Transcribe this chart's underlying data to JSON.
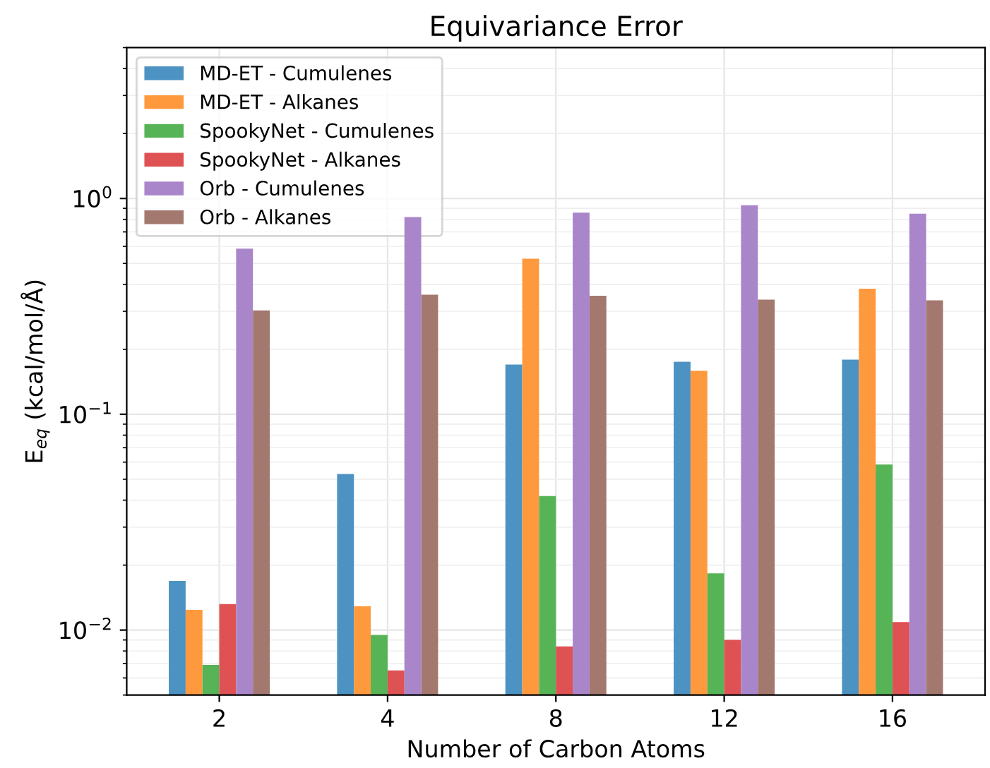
{
  "chart_data": {
    "type": "bar",
    "title": "Equivariance Error",
    "xlabel": "Number of Carbon Atoms",
    "ylabel": "E$_{eq}$ (kcal/mol/Å)",
    "categories": [
      "2",
      "4",
      "8",
      "12",
      "16"
    ],
    "series": [
      {
        "name": "MD-ET - Cumulenes",
        "color": "#4c92c3",
        "values": [
          0.0169,
          0.0529,
          0.17,
          0.175,
          0.179
        ]
      },
      {
        "name": "MD-ET - Alkanes",
        "color": "#ff993e",
        "values": [
          0.0124,
          0.0129,
          0.526,
          0.159,
          0.382
        ]
      },
      {
        "name": "SpookyNet - Cumulenes",
        "color": "#56b356",
        "values": [
          0.0069,
          0.0095,
          0.0418,
          0.0183,
          0.0585
        ]
      },
      {
        "name": "SpookyNet - Alkanes",
        "color": "#de5253",
        "values": [
          0.0132,
          0.0065,
          0.0084,
          0.009,
          0.0109
        ]
      },
      {
        "name": "Orb - Cumulenes",
        "color": "#a985ca",
        "values": [
          0.585,
          0.82,
          0.86,
          0.93,
          0.85
        ]
      },
      {
        "name": "Orb - Alkanes",
        "color": "#a3786f",
        "values": [
          0.303,
          0.358,
          0.354,
          0.34,
          0.337
        ]
      }
    ],
    "log": "y",
    "ylim": [
      0.005,
      5
    ],
    "yticks": [
      {
        "value": 0.01,
        "label": "10$^{−2}$"
      },
      {
        "value": 0.1,
        "label": "10$^{−1}$"
      },
      {
        "value": 1,
        "label": "10$^{0}$"
      }
    ],
    "grid": true,
    "legend": "top left"
  }
}
